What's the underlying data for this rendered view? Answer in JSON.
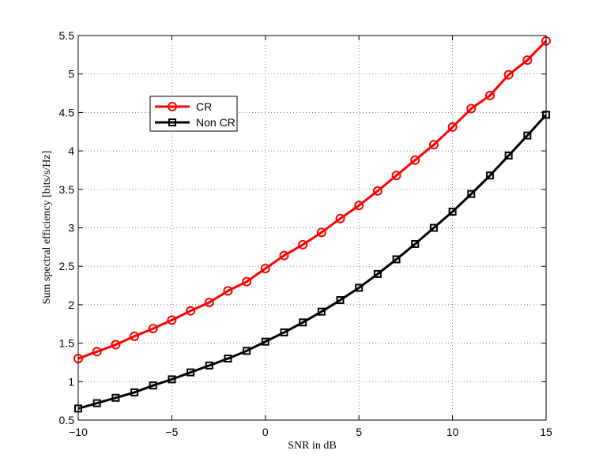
{
  "chart_data": {
    "type": "line",
    "title": "",
    "xlabel": "SNR in dB",
    "ylabel": "Sum spectral efficiency [bits/s/Hz]",
    "xlim": [
      -10,
      15
    ],
    "ylim": [
      0.5,
      5.5
    ],
    "x_ticks": [
      -10,
      -5,
      0,
      5,
      10,
      15
    ],
    "x_tick_labels": [
      "−10",
      "−5",
      "0",
      "5",
      "10",
      "15"
    ],
    "y_ticks": [
      0.5,
      1,
      1.5,
      2,
      2.5,
      3,
      3.5,
      4,
      4.5,
      5,
      5.5
    ],
    "y_tick_labels": [
      "0.5",
      "1",
      "1.5",
      "2",
      "2.5",
      "3",
      "3.5",
      "4",
      "4.5",
      "5",
      "5.5"
    ],
    "grid": true,
    "legend_position": "upper-left",
    "x": [
      -10,
      -9,
      -8,
      -7,
      -6,
      -5,
      -4,
      -3,
      -2,
      -1,
      0,
      1,
      2,
      3,
      4,
      5,
      6,
      7,
      8,
      9,
      10,
      11,
      12,
      13,
      14,
      15
    ],
    "series": [
      {
        "name": "CR",
        "color": "#ff0000",
        "marker": "circle",
        "values": [
          1.3,
          1.39,
          1.48,
          1.59,
          1.69,
          1.8,
          1.92,
          2.03,
          2.18,
          2.3,
          2.47,
          2.64,
          2.78,
          2.94,
          3.12,
          3.29,
          3.48,
          3.68,
          3.88,
          4.08,
          4.31,
          4.55,
          4.72,
          4.99,
          5.18,
          5.43
        ]
      },
      {
        "name": "Non CR",
        "color": "#000000",
        "marker": "square",
        "values": [
          0.65,
          0.72,
          0.79,
          0.86,
          0.95,
          1.03,
          1.12,
          1.21,
          1.3,
          1.4,
          1.52,
          1.64,
          1.77,
          1.91,
          2.06,
          2.22,
          2.4,
          2.59,
          2.79,
          3.0,
          3.21,
          3.44,
          3.68,
          3.94,
          4.2,
          4.47
        ]
      }
    ]
  }
}
